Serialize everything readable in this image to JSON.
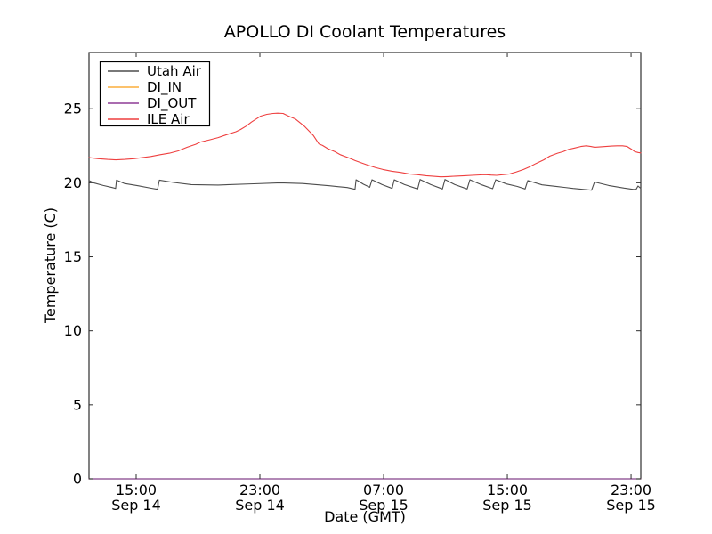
{
  "title": "APOLLO DI Coolant Temperatures",
  "chart_data": {
    "type": "line",
    "title": "APOLLO DI Coolant Temperatures",
    "xlabel": "Date (GMT)",
    "ylabel": "Temperature (C)",
    "x_unit": "hours since Sep 14 12:00 GMT",
    "xlim": [
      0,
      35.68
    ],
    "ylim": [
      0,
      28.8
    ],
    "grid": false,
    "legend_position": "upper left",
    "yticks": [
      0,
      5,
      10,
      15,
      20,
      25
    ],
    "x_ticks": [
      {
        "t": 3.05,
        "label": "15:00",
        "sub": "Sep 14"
      },
      {
        "t": 11.05,
        "label": "23:00",
        "sub": "Sep 14"
      },
      {
        "t": 19.05,
        "label": "07:00",
        "sub": "Sep 15"
      },
      {
        "t": 27.05,
        "label": "15:00",
        "sub": "Sep 15"
      },
      {
        "t": 35.05,
        "label": "23:00",
        "sub": "Sep 15"
      }
    ],
    "series": [
      {
        "name": "Utah Air",
        "color": "#4d4d4d",
        "points": [
          [
            0,
            20.15
          ],
          [
            0.35,
            19.98
          ],
          [
            0.92,
            19.82
          ],
          [
            1.5,
            19.68
          ],
          [
            1.72,
            19.62
          ],
          [
            1.78,
            20.18
          ],
          [
            2.3,
            19.95
          ],
          [
            3.17,
            19.8
          ],
          [
            4.03,
            19.63
          ],
          [
            4.43,
            19.56
          ],
          [
            4.55,
            20.18
          ],
          [
            5.47,
            20.02
          ],
          [
            6.62,
            19.88
          ],
          [
            8.35,
            19.85
          ],
          [
            10.65,
            19.93
          ],
          [
            12.37,
            20.0
          ],
          [
            13.81,
            19.95
          ],
          [
            15.54,
            19.8
          ],
          [
            16.7,
            19.68
          ],
          [
            17.2,
            19.56
          ],
          [
            17.27,
            20.2
          ],
          [
            17.75,
            19.9
          ],
          [
            18.15,
            19.7
          ],
          [
            18.3,
            20.2
          ],
          [
            18.95,
            19.88
          ],
          [
            19.6,
            19.62
          ],
          [
            19.74,
            20.2
          ],
          [
            20.4,
            19.88
          ],
          [
            21.25,
            19.58
          ],
          [
            21.41,
            20.22
          ],
          [
            22.1,
            19.88
          ],
          [
            22.85,
            19.58
          ],
          [
            23.02,
            20.22
          ],
          [
            23.65,
            19.88
          ],
          [
            24.45,
            19.58
          ],
          [
            24.63,
            20.2
          ],
          [
            25.4,
            19.86
          ],
          [
            26.1,
            19.6
          ],
          [
            26.3,
            20.2
          ],
          [
            27.0,
            19.92
          ],
          [
            27.7,
            19.75
          ],
          [
            28.2,
            19.58
          ],
          [
            28.37,
            20.15
          ],
          [
            29.3,
            19.86
          ],
          [
            30.2,
            19.76
          ],
          [
            31.3,
            19.62
          ],
          [
            32.5,
            19.5
          ],
          [
            32.69,
            20.05
          ],
          [
            33.6,
            19.82
          ],
          [
            34.6,
            19.64
          ],
          [
            35.2,
            19.55
          ],
          [
            35.38,
            19.56
          ],
          [
            35.5,
            19.78
          ],
          [
            35.68,
            19.62
          ]
        ]
      },
      {
        "name": "DI_IN",
        "color": "#fbae3c",
        "points": [
          [
            0,
            0
          ],
          [
            35.68,
            0
          ]
        ]
      },
      {
        "name": "DI_OUT",
        "color": "#8e3b96",
        "points": [
          [
            0,
            0
          ],
          [
            35.68,
            0
          ]
        ]
      },
      {
        "name": "ILE Air",
        "color": "#ee3f3f",
        "points": [
          [
            0,
            21.7
          ],
          [
            0.6,
            21.63
          ],
          [
            1.2,
            21.58
          ],
          [
            1.75,
            21.55
          ],
          [
            2.3,
            21.58
          ],
          [
            2.9,
            21.63
          ],
          [
            3.45,
            21.7
          ],
          [
            4.0,
            21.78
          ],
          [
            4.6,
            21.9
          ],
          [
            5.2,
            22.0
          ],
          [
            5.75,
            22.15
          ],
          [
            6.35,
            22.4
          ],
          [
            6.9,
            22.6
          ],
          [
            7.2,
            22.75
          ],
          [
            7.8,
            22.9
          ],
          [
            8.35,
            23.05
          ],
          [
            8.9,
            23.25
          ],
          [
            9.5,
            23.45
          ],
          [
            9.8,
            23.6
          ],
          [
            10.2,
            23.85
          ],
          [
            10.5,
            24.1
          ],
          [
            10.8,
            24.3
          ],
          [
            11.1,
            24.5
          ],
          [
            11.5,
            24.62
          ],
          [
            11.9,
            24.68
          ],
          [
            12.2,
            24.7
          ],
          [
            12.55,
            24.68
          ],
          [
            12.9,
            24.5
          ],
          [
            13.35,
            24.3
          ],
          [
            13.95,
            23.8
          ],
          [
            14.5,
            23.2
          ],
          [
            14.87,
            22.62
          ],
          [
            15.1,
            22.52
          ],
          [
            15.45,
            22.3
          ],
          [
            15.9,
            22.1
          ],
          [
            16.25,
            21.9
          ],
          [
            16.8,
            21.68
          ],
          [
            17.2,
            21.5
          ],
          [
            17.6,
            21.35
          ],
          [
            18.0,
            21.2
          ],
          [
            18.55,
            21.02
          ],
          [
            19.0,
            20.9
          ],
          [
            19.6,
            20.78
          ],
          [
            20.15,
            20.7
          ],
          [
            20.7,
            20.6
          ],
          [
            21.2,
            20.55
          ],
          [
            21.8,
            20.48
          ],
          [
            22.2,
            20.45
          ],
          [
            22.75,
            20.4
          ],
          [
            23.2,
            20.42
          ],
          [
            23.7,
            20.45
          ],
          [
            24.3,
            20.48
          ],
          [
            24.75,
            20.5
          ],
          [
            25.3,
            20.53
          ],
          [
            25.6,
            20.55
          ],
          [
            26.0,
            20.52
          ],
          [
            26.35,
            20.5
          ],
          [
            26.8,
            20.55
          ],
          [
            27.2,
            20.6
          ],
          [
            27.6,
            20.72
          ],
          [
            28.1,
            20.9
          ],
          [
            28.5,
            21.08
          ],
          [
            28.9,
            21.3
          ],
          [
            29.4,
            21.55
          ],
          [
            29.8,
            21.8
          ],
          [
            30.3,
            22.0
          ],
          [
            30.65,
            22.1
          ],
          [
            31.0,
            22.25
          ],
          [
            31.4,
            22.35
          ],
          [
            31.8,
            22.45
          ],
          [
            32.15,
            22.5
          ],
          [
            32.45,
            22.45
          ],
          [
            32.7,
            22.4
          ],
          [
            33.0,
            22.42
          ],
          [
            33.4,
            22.45
          ],
          [
            33.8,
            22.48
          ],
          [
            34.15,
            22.5
          ],
          [
            34.5,
            22.5
          ],
          [
            34.8,
            22.45
          ],
          [
            35.1,
            22.25
          ],
          [
            35.3,
            22.1
          ],
          [
            35.5,
            22.05
          ],
          [
            35.68,
            22.02
          ]
        ]
      }
    ]
  }
}
